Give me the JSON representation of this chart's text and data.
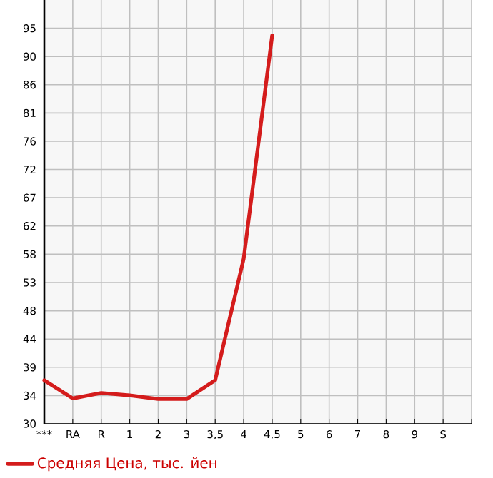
{
  "chart_data": {
    "type": "line",
    "categories": [
      "***",
      "RA",
      "R",
      "1",
      "2",
      "3",
      "3,5",
      "4",
      "4,5",
      "5",
      "6",
      "7",
      "8",
      "9",
      "S"
    ],
    "series": [
      {
        "name": "Средняя Цена, тыс. йен",
        "color": "#d41c1c",
        "values": [
          36.8,
          33.8,
          34.7,
          34.3,
          33.7,
          33.7,
          36.8,
          56.9,
          93.8,
          null,
          null,
          null,
          null,
          null,
          null
        ]
      }
    ],
    "ylim": [
      29.6,
      99.66
    ],
    "yticks": [
      {
        "value": 29.6,
        "label": "30"
      },
      {
        "value": 34.27,
        "label": "34"
      },
      {
        "value": 38.94,
        "label": "39"
      },
      {
        "value": 43.61,
        "label": "44"
      },
      {
        "value": 48.28,
        "label": "48"
      },
      {
        "value": 52.96,
        "label": "53"
      },
      {
        "value": 57.63,
        "label": "58"
      },
      {
        "value": 62.3,
        "label": "62"
      },
      {
        "value": 66.97,
        "label": "67"
      },
      {
        "value": 71.64,
        "label": "72"
      },
      {
        "value": 76.31,
        "label": "76"
      },
      {
        "value": 80.98,
        "label": "81"
      },
      {
        "value": 85.65,
        "label": "86"
      },
      {
        "value": 90.32,
        "label": "90"
      },
      {
        "value": 94.99,
        "label": "95"
      }
    ],
    "grid": true,
    "legend": "bottom left",
    "marker": "none",
    "line_style": "solid"
  }
}
